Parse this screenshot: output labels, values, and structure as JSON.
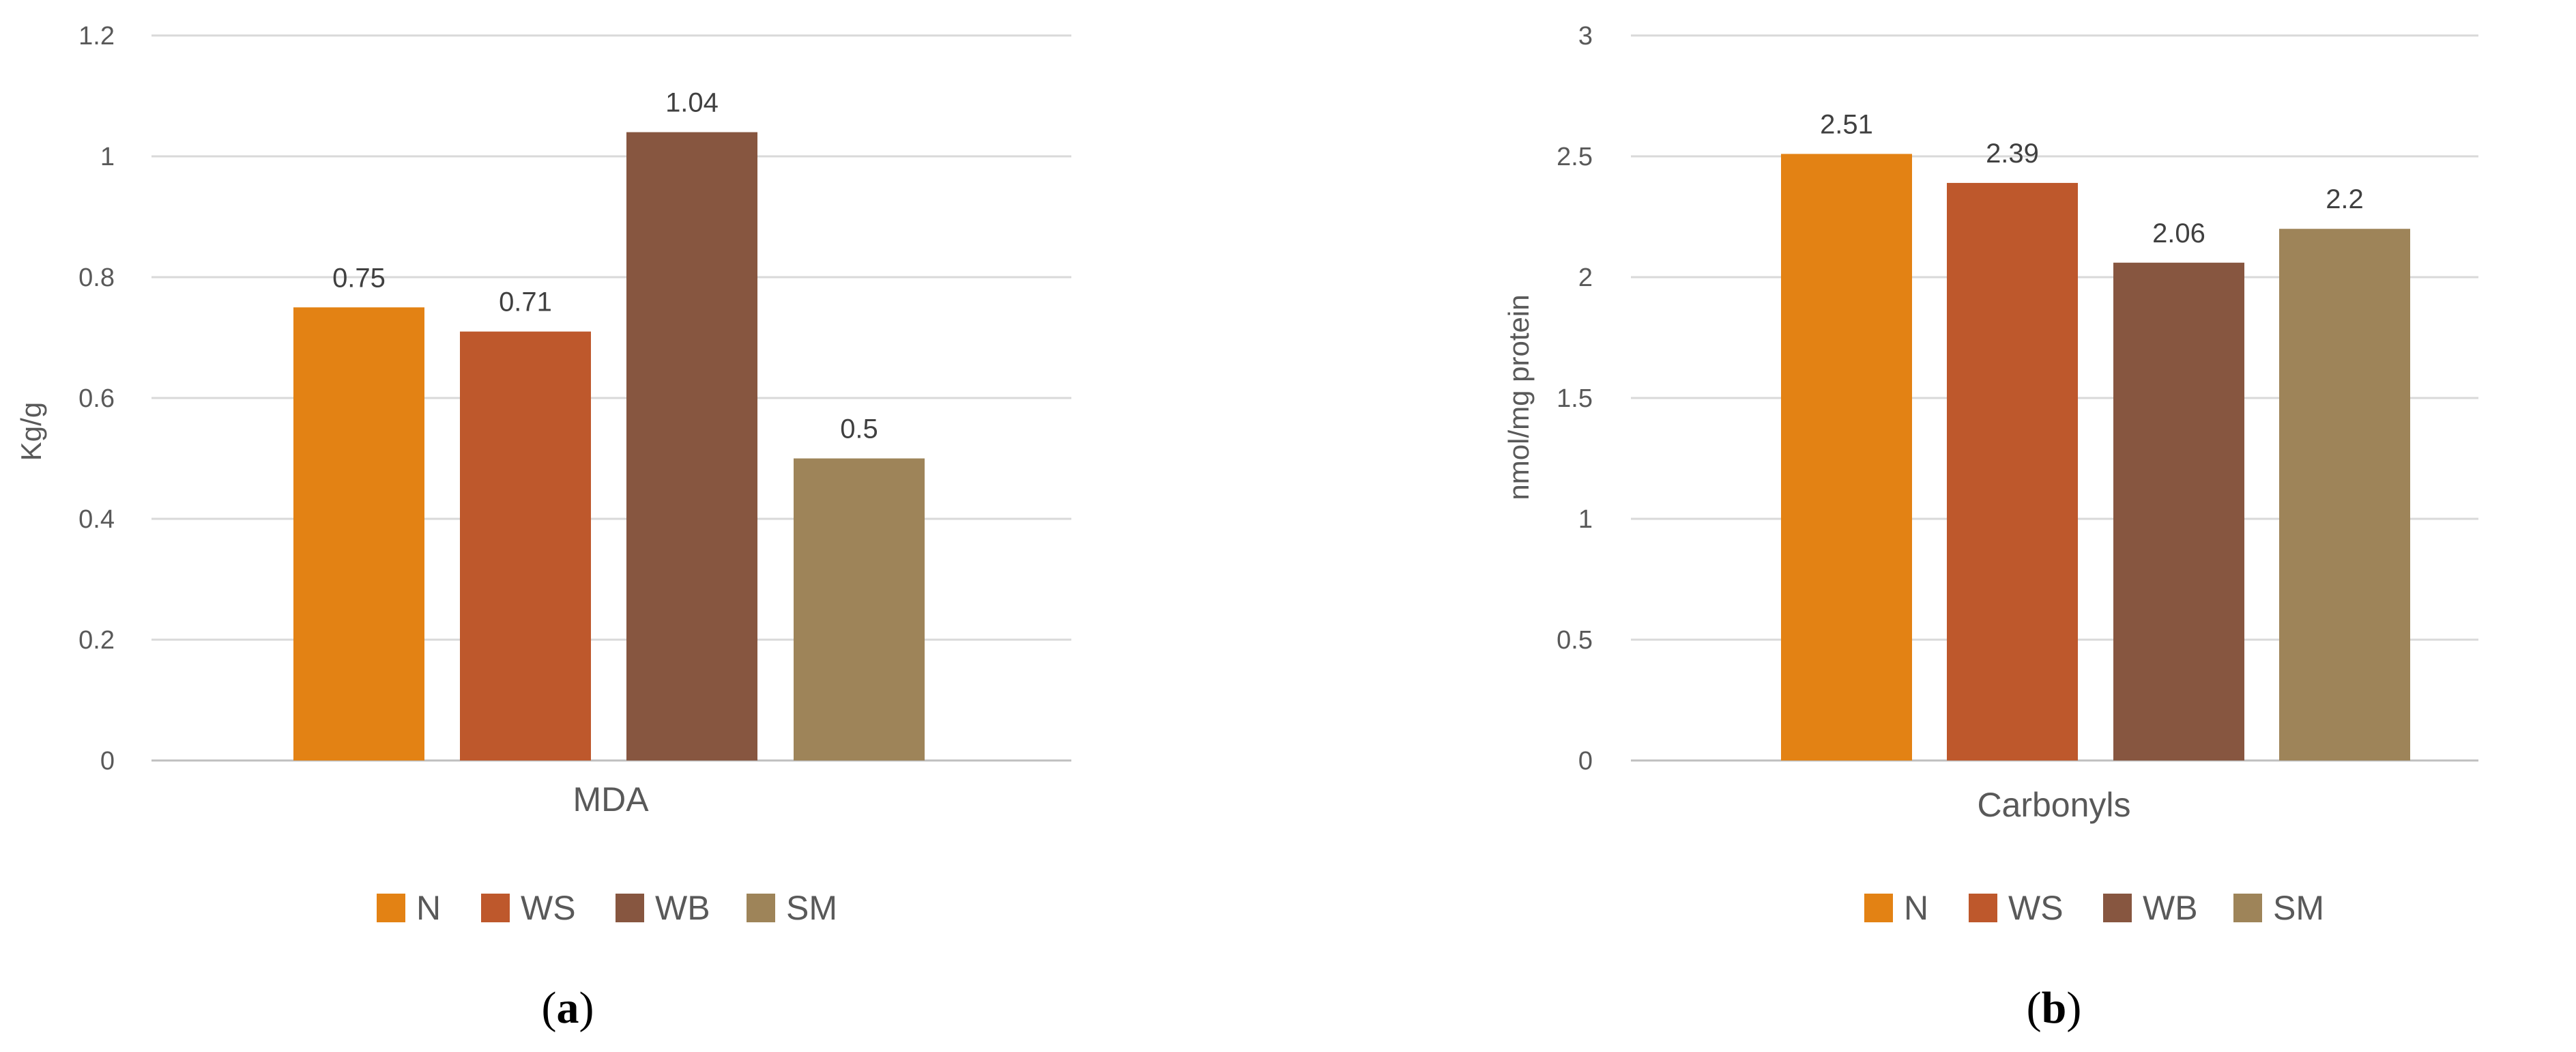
{
  "chart_data": [
    {
      "type": "bar",
      "panel_label": "a",
      "categories": [
        "MDA"
      ],
      "series": [
        {
          "name": "N",
          "values": [
            0.75
          ],
          "color": "#E38214"
        },
        {
          "name": "WS",
          "values": [
            0.71
          ],
          "color": "#BE582C"
        },
        {
          "name": "WB",
          "values": [
            1.04
          ],
          "color": "#875640"
        },
        {
          "name": "SM",
          "values": [
            0.5
          ],
          "color": "#9E8459"
        }
      ],
      "data_labels": [
        "0.75",
        "0.71",
        "1.04",
        "0.5"
      ],
      "ylabel": "Kg/g",
      "xlabel": "",
      "ylim": [
        0,
        1.2
      ],
      "yticks": [
        "0",
        "0.2",
        "0.4",
        "0.6",
        "0.8",
        "1",
        "1.2"
      ],
      "grid": true,
      "legend_position": "bottom"
    },
    {
      "type": "bar",
      "panel_label": "b",
      "categories": [
        "Carbonyls"
      ],
      "series": [
        {
          "name": "N",
          "values": [
            2.51
          ],
          "color": "#E38214"
        },
        {
          "name": "WS",
          "values": [
            2.39
          ],
          "color": "#BE582C"
        },
        {
          "name": "WB",
          "values": [
            2.06
          ],
          "color": "#875640"
        },
        {
          "name": "SM",
          "values": [
            2.2
          ],
          "color": "#9E8459"
        }
      ],
      "data_labels": [
        "2.51",
        "2.39",
        "2.06",
        "2.2"
      ],
      "ylabel": "nmol/mg protein",
      "xlabel": "",
      "ylim": [
        0,
        3
      ],
      "yticks": [
        "0",
        "0.5",
        "1",
        "1.5",
        "2",
        "2.5",
        "3"
      ],
      "grid": true,
      "legend_position": "bottom"
    }
  ],
  "colors": {
    "grid": "#D9D9D9",
    "axis": "#BFBFBF"
  }
}
